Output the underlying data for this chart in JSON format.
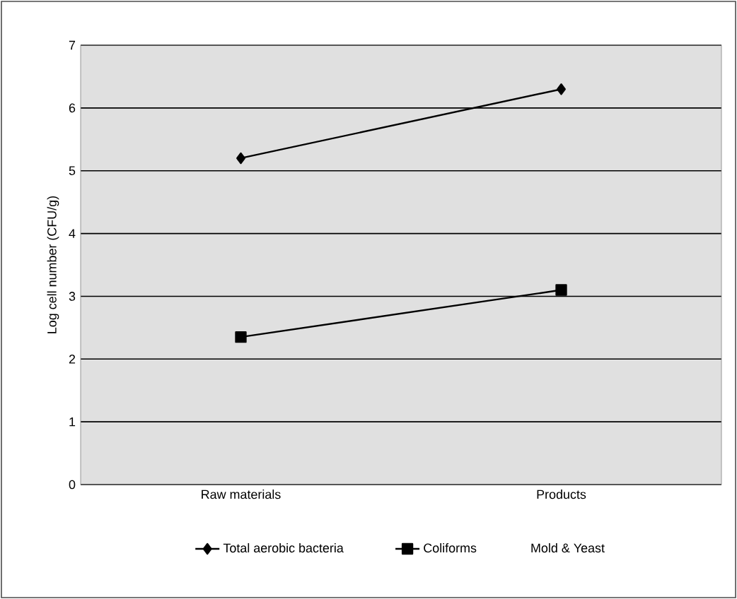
{
  "chart_data": {
    "type": "line",
    "ylabel": "Log cell number (CFU/g)",
    "categories": [
      "Raw materials",
      "Products"
    ],
    "series": [
      {
        "name": "Total aerobic bacteria",
        "color": "#000000",
        "marker": "diamond",
        "values": [
          5.2,
          6.3
        ]
      },
      {
        "name": "Coliforms",
        "color": "#000000",
        "marker": "square",
        "values": [
          2.35,
          3.1
        ]
      },
      {
        "name": "Mold & Yeast",
        "values": [
          null,
          null
        ]
      }
    ],
    "ylim": [
      0,
      7
    ],
    "yticks": [
      0,
      1,
      2,
      3,
      4,
      5,
      6,
      7
    ],
    "grid": "y",
    "legend": "bottom"
  }
}
